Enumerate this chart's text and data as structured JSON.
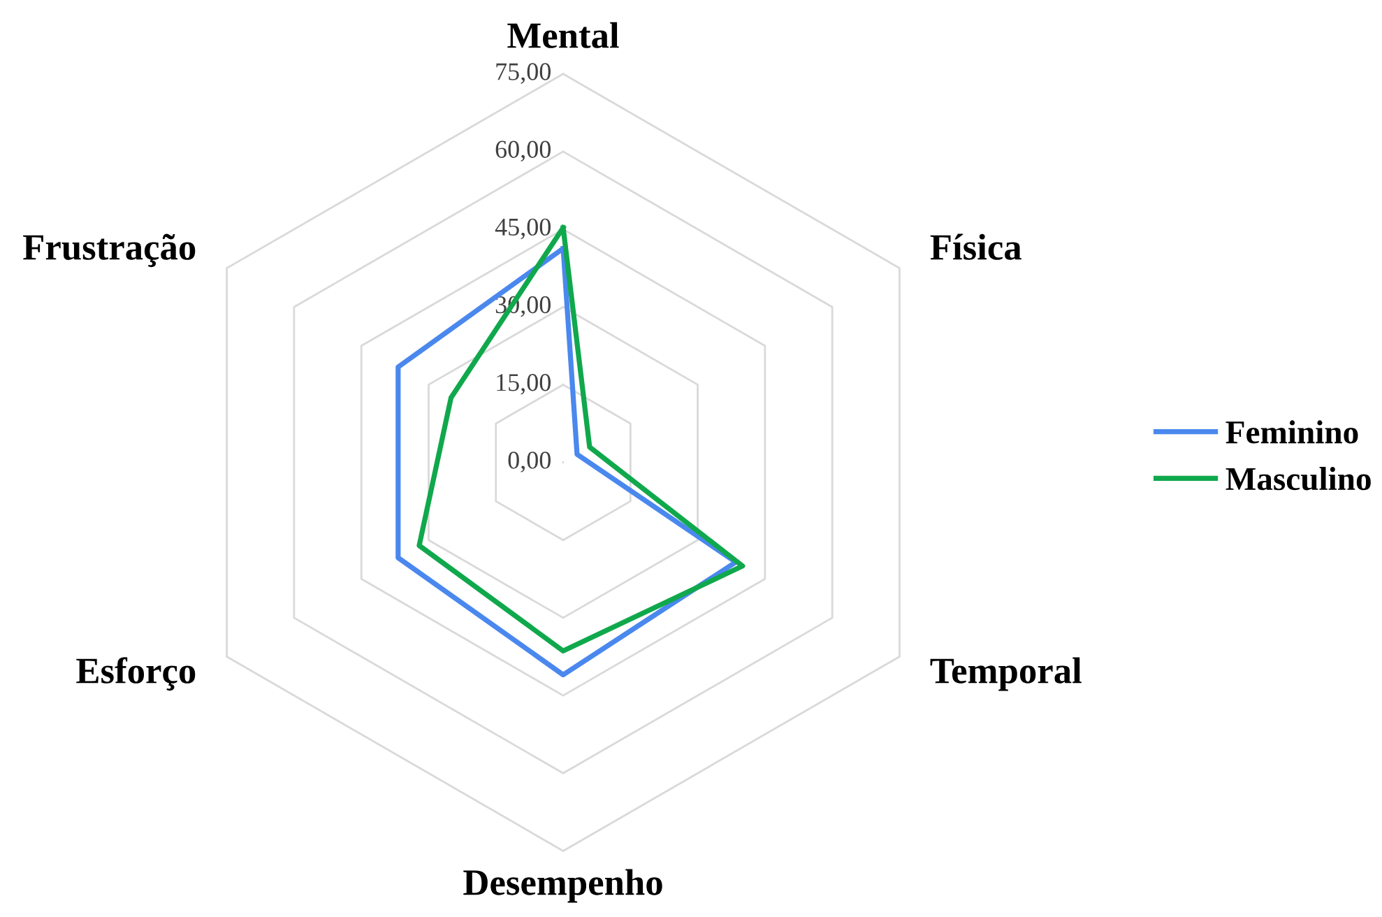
{
  "chart_data": {
    "type": "radar",
    "categories": [
      "Mental",
      "Física",
      "Temporal",
      "Desempenho",
      "Esforço",
      "Frustração"
    ],
    "series": [
      {
        "name": "Feminino",
        "color": "#4a88ee",
        "values": [
          41.3,
          3.1,
          38.5,
          41.0,
          36.8,
          36.8
        ]
      },
      {
        "name": "Masculino",
        "color": "#10a84c",
        "values": [
          45.3,
          5.9,
          40.0,
          36.4,
          32.1,
          25.0
        ]
      }
    ],
    "ylim": [
      0,
      75
    ],
    "yticks": [
      {
        "value": 0,
        "label": "0,00"
      },
      {
        "value": 15,
        "label": "15,00"
      },
      {
        "value": 30,
        "label": "30,00"
      },
      {
        "value": 45,
        "label": "45,00"
      },
      {
        "value": 60,
        "label": "60,00"
      },
      {
        "value": 75,
        "label": "75,00"
      }
    ],
    "grid": true,
    "legend": "right"
  }
}
